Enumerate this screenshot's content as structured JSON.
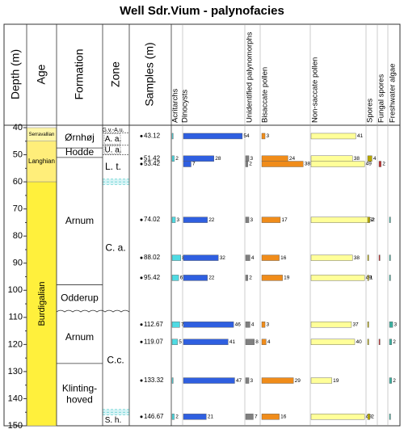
{
  "chart_data": {
    "type": "bar",
    "title": "Well Sdr.Vium - palynofacies",
    "ylabel": "Depth (m)",
    "headers": {
      "age": "Age",
      "formation": "Formation",
      "zone": "Zone",
      "samples": "Samples (m)"
    },
    "ylim": [
      40,
      150
    ],
    "yticks": [
      40,
      50,
      60,
      70,
      80,
      90,
      100,
      110,
      120,
      130,
      140,
      150
    ],
    "ages": [
      {
        "name": "Serravallian",
        "from": 40,
        "to": 45,
        "color": "#fff6a8"
      },
      {
        "name": "Langhian",
        "from": 45,
        "to": 60,
        "color": "#ffee7a"
      },
      {
        "name": "Burdigalian",
        "from": 60,
        "to": 150,
        "color": "#fff03c"
      }
    ],
    "formations": [
      {
        "name": "Ørnhøj",
        "from": 40,
        "to": 47.5
      },
      {
        "name": "Hodde",
        "from": 47.5,
        "to": 51
      },
      {
        "name": "Arnum",
        "from": 51,
        "to": 98
      },
      {
        "name": "Odderup",
        "from": 98,
        "to": 108
      },
      {
        "name": "Arnum",
        "from": 108,
        "to": 127
      },
      {
        "name": "Klinting-hoved",
        "from": 127,
        "to": 150
      }
    ],
    "zones": [
      {
        "name": "G.v.-A.u.",
        "from": 40,
        "to": 42
      },
      {
        "name": "A. a.",
        "from": 42,
        "to": 46.5
      },
      {
        "name": "U. a.",
        "from": 46.5,
        "to": 50
      },
      {
        "name": "L. t.",
        "from": 50,
        "to": 59
      },
      {
        "name": "C. a.",
        "from": 61,
        "to": 108
      },
      {
        "name": "C.c.",
        "from": 108,
        "to": 144
      },
      {
        "name": "S. h.",
        "from": 146,
        "to": 150
      }
    ],
    "gaps": [
      [
        59,
        61
      ],
      [
        144,
        146
      ]
    ],
    "samples": [
      43.12,
      51.42,
      53.42,
      74.02,
      88.02,
      95.42,
      112.67,
      119.07,
      133.32,
      146.67
    ],
    "series": [
      {
        "name": "Acritarchs",
        "color": "#4fdbe3",
        "values": [
          1,
          2,
          0,
          3,
          8,
          6,
          7,
          5,
          1,
          2
        ],
        "value_labels": [
          null,
          "2",
          null,
          "3",
          "8",
          "6",
          "7",
          "5",
          null,
          "2"
        ]
      },
      {
        "name": "Dinocysts",
        "color": "#2f5fe0",
        "values": [
          54,
          28,
          7,
          22,
          32,
          22,
          46,
          41,
          47,
          21
        ],
        "value_labels": [
          "54",
          "28",
          "7",
          "22",
          "32",
          "22",
          "46",
          "41",
          "47",
          "21"
        ]
      },
      {
        "name": "Unidentified palynomorphs",
        "color": "#808080",
        "values": [
          0,
          3,
          2,
          3,
          4,
          2,
          4,
          8,
          3,
          7
        ],
        "value_labels": [
          null,
          "3",
          "2",
          "3",
          "4",
          "2",
          "4",
          "8",
          "3",
          "7"
        ]
      },
      {
        "name": "Bisaccate pollen",
        "color": "#f08c1a",
        "values": [
          3,
          24,
          38,
          17,
          16,
          19,
          3,
          4,
          29,
          16
        ],
        "value_labels": [
          "3",
          "24",
          "38",
          "17",
          "16",
          "19",
          "3",
          "4",
          "29",
          "16"
        ]
      },
      {
        "name": "Non-saccate pollen",
        "color": "#ffff99",
        "values": [
          41,
          38,
          49,
          52,
          38,
          49,
          37,
          40,
          19,
          49
        ],
        "value_labels": [
          "41",
          "38",
          "49",
          "52",
          "38",
          "49",
          "37",
          "40",
          "19",
          "49"
        ]
      },
      {
        "name": "Spores",
        "color": "#b8a800",
        "values": [
          0,
          4,
          0,
          2,
          1,
          1,
          1,
          1,
          0,
          2
        ],
        "value_labels": [
          null,
          "4",
          null,
          "2",
          null,
          "1",
          null,
          null,
          null,
          "2"
        ]
      },
      {
        "name": "Fungal spores",
        "color": "#c03030",
        "values": [
          0,
          0,
          2,
          0,
          1,
          0,
          0,
          1,
          0,
          0
        ],
        "value_labels": [
          null,
          null,
          "2",
          null,
          null,
          null,
          null,
          null,
          null,
          null
        ]
      },
      {
        "name": "Freshwater algae",
        "color": "#3cb0a0",
        "values": [
          0,
          0,
          0,
          1,
          1,
          1,
          3,
          2,
          2,
          1
        ],
        "value_labels": [
          null,
          null,
          null,
          null,
          null,
          null,
          "3",
          "2",
          "2",
          null
        ]
      }
    ]
  }
}
